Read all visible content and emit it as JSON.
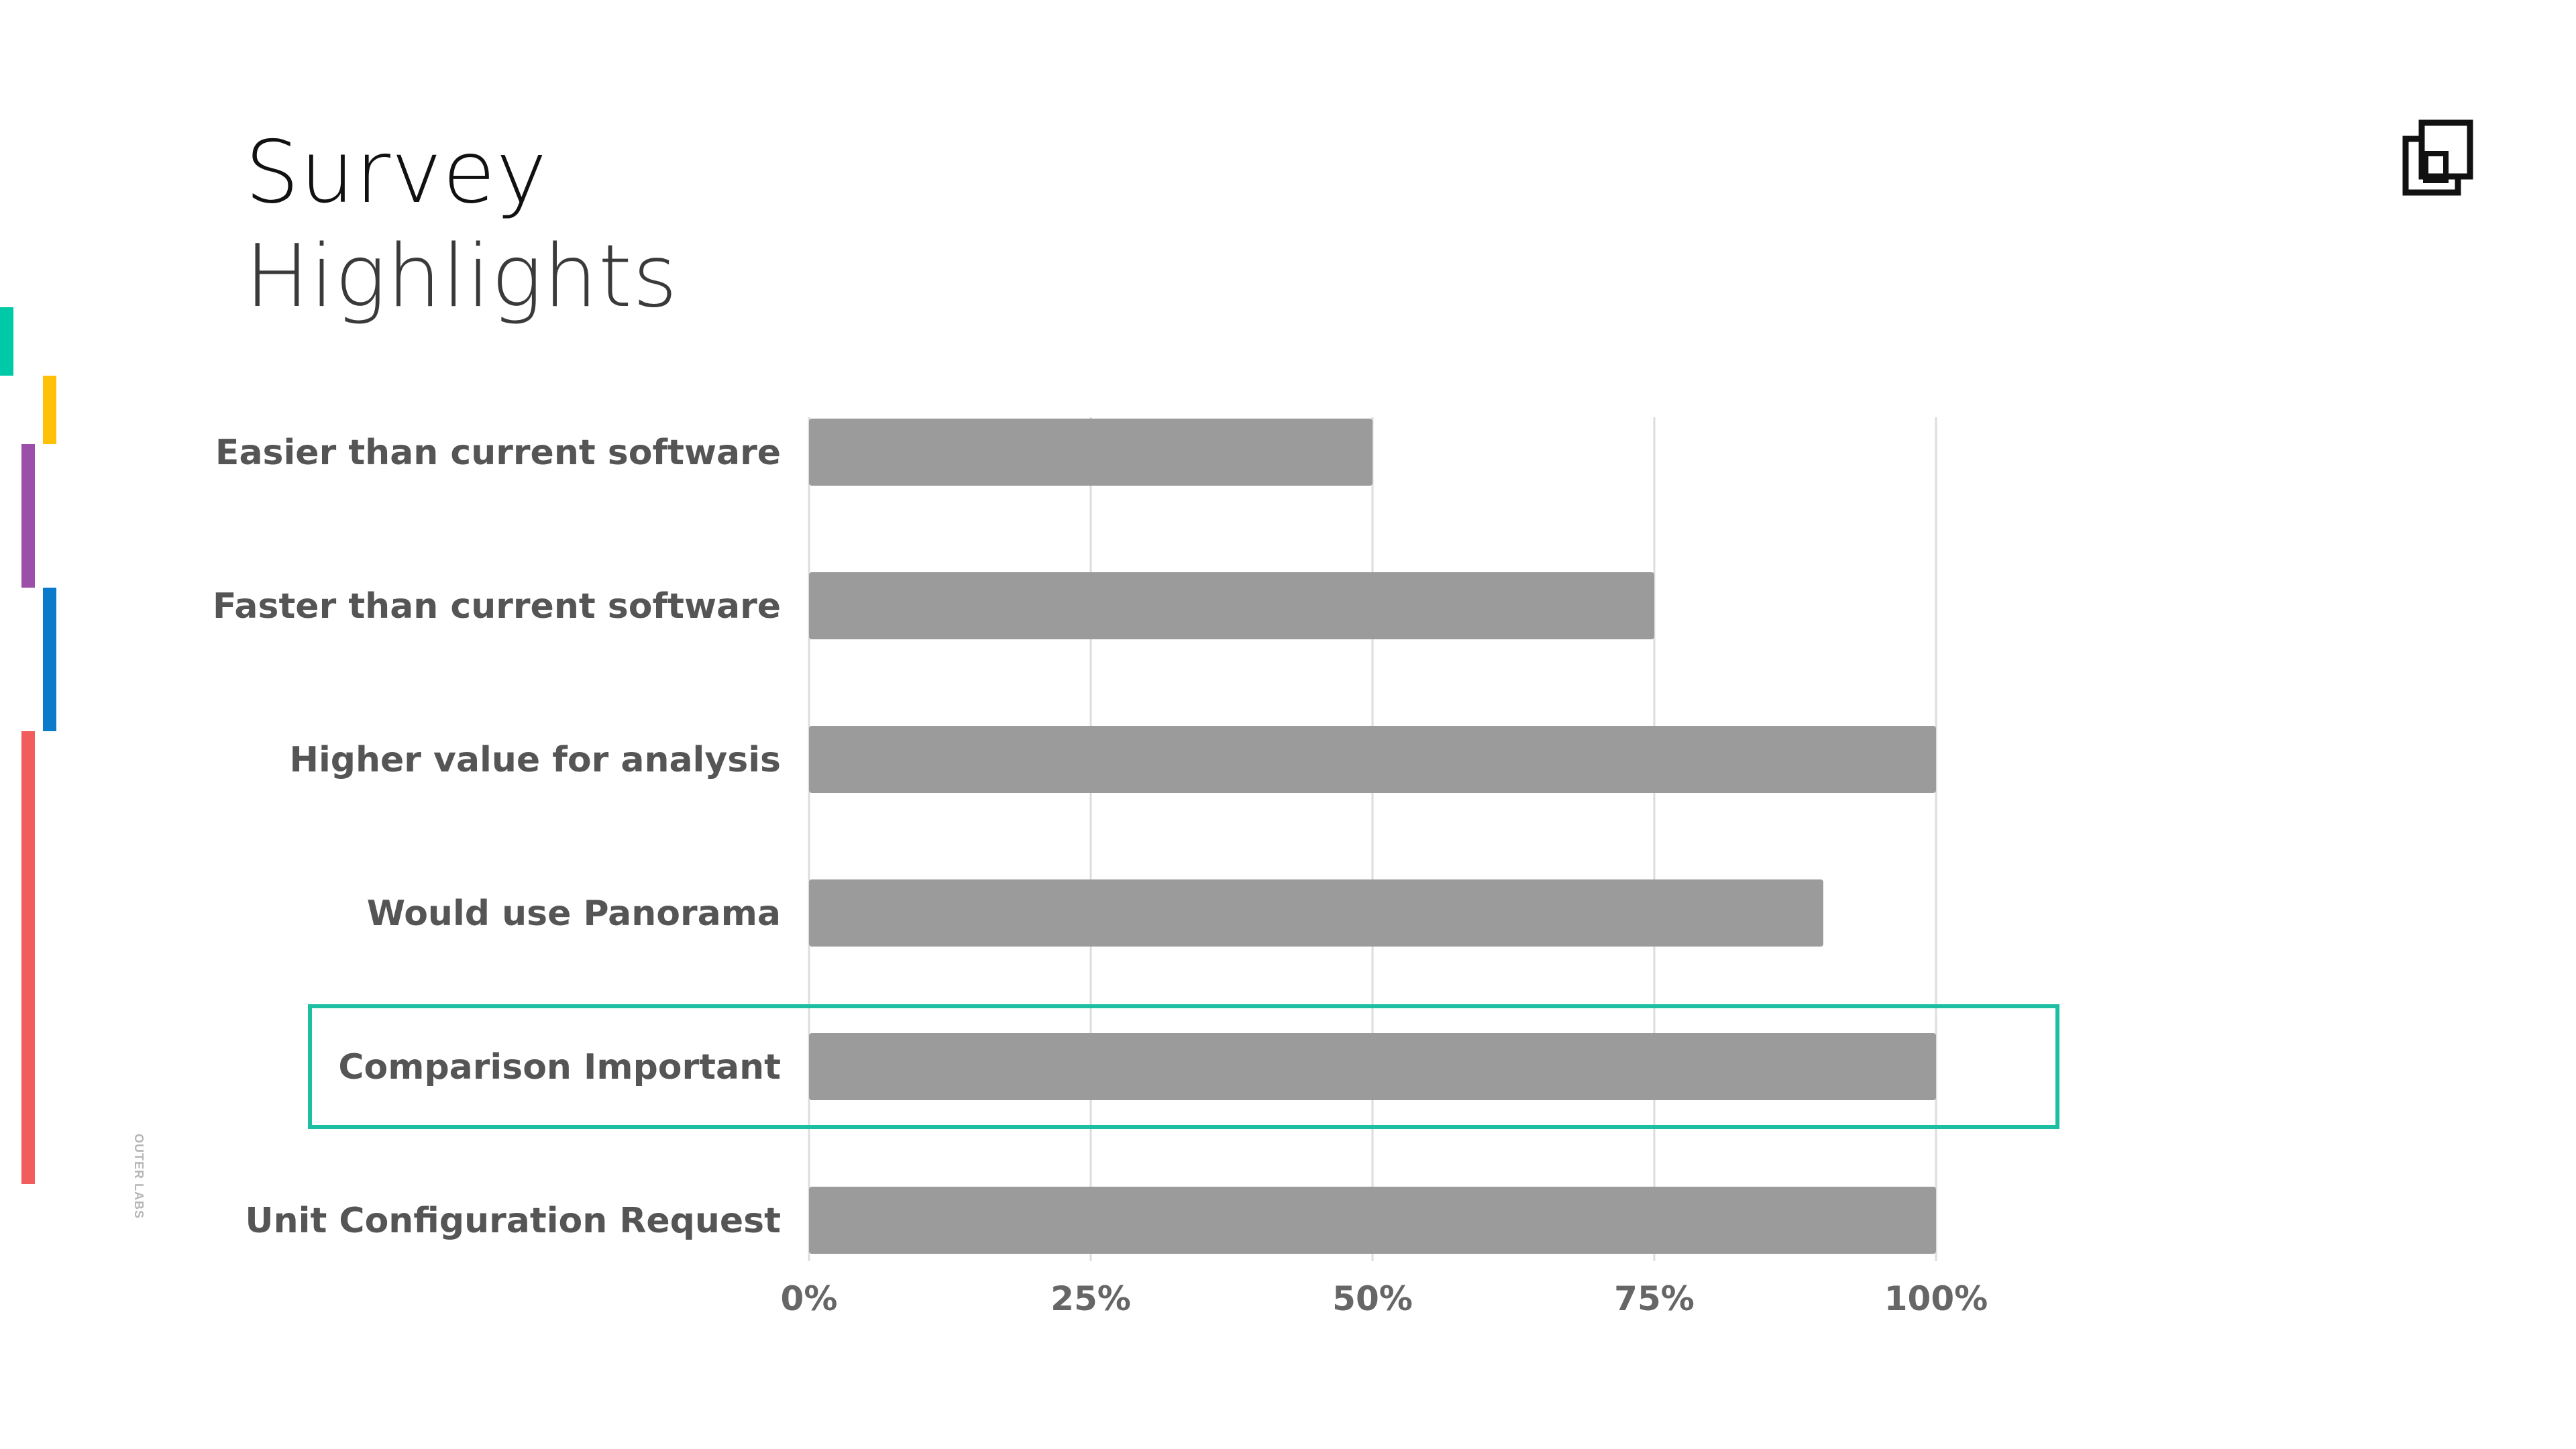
{
  "slide": {
    "title_line1": "Survey",
    "title_line2": "Highlights",
    "vertical_caption": "OUTER LABS",
    "logo_icon": "copy-square-icon",
    "accent_colors": [
      "#00C9A7",
      "#FFC107",
      "#9B4FA8",
      "#0A7ACB",
      "#F25C5C"
    ],
    "highlight_color": "#1DBFA3"
  },
  "chart_data": {
    "type": "bar",
    "orientation": "horizontal",
    "categories": [
      "Easier than current software",
      "Faster than current software",
      "Higher value for analysis",
      "Would use Panorama",
      "Comparison Important",
      "Unit Configuration Request"
    ],
    "values": [
      50,
      75,
      100,
      90,
      100,
      100
    ],
    "xlim": [
      0,
      100
    ],
    "xticks": [
      "0%",
      "25%",
      "50%",
      "75%",
      "100%"
    ],
    "grid": true,
    "bar_color": "#9B9B9B",
    "highlighted_category": "Comparison Important"
  }
}
